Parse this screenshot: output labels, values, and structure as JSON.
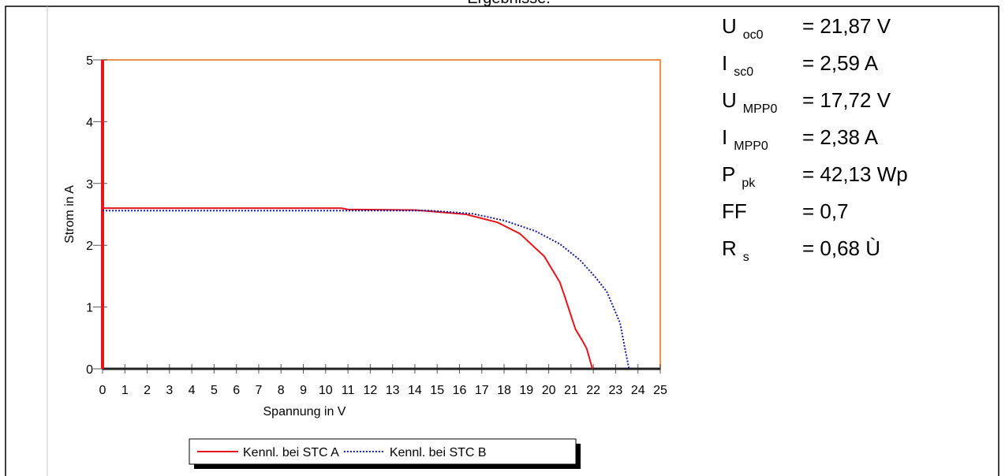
{
  "header": {
    "title": "Ergebnisse:"
  },
  "results": [
    {
      "symbol": "U",
      "sub": "oc0",
      "value": "= 21,87 V"
    },
    {
      "symbol": "I",
      "sub": "sc0",
      "value": "= 2,59 A"
    },
    {
      "symbol": "U",
      "sub": "MPP0",
      "value": "= 17,72 V"
    },
    {
      "symbol": "I",
      "sub": "MPP0",
      "value": "= 2,38 A"
    },
    {
      "symbol": "P",
      "sub": "pk",
      "value": "= 42,13 Wp"
    },
    {
      "symbol": "FF",
      "sub": "",
      "value": "= 0,7"
    },
    {
      "symbol": "R",
      "sub": "s",
      "value": "= 0,68 Ù"
    }
  ],
  "chart_data": {
    "type": "line",
    "x_label": "Spannung in V",
    "y_label": "Strom in A",
    "xlim": [
      0,
      25
    ],
    "xticks": [
      0,
      1,
      2,
      3,
      4,
      5,
      6,
      7,
      8,
      9,
      10,
      11,
      12,
      13,
      14,
      15,
      16,
      17,
      18,
      19,
      20,
      21,
      22,
      23,
      24,
      25
    ],
    "ylim": [
      0,
      5
    ],
    "yticks": [
      0,
      1,
      2,
      3,
      4,
      5
    ],
    "series": [
      {
        "name": "Kennl. bei STC A",
        "color": "#e8141c",
        "style": "solid",
        "x": [
          0,
          10.7,
          11,
          14,
          14.7,
          16.3,
          17.7,
          18.7,
          19.8,
          20.5,
          20.7,
          20.9,
          21.2,
          21.5,
          21.7,
          21.96
        ],
        "values": [
          2.6,
          2.6,
          2.58,
          2.57,
          2.55,
          2.5,
          2.37,
          2.19,
          1.82,
          1.4,
          1.19,
          0.97,
          0.64,
          0.46,
          0.33,
          0
        ]
      },
      {
        "name": "Kennl. bei STC B",
        "color": "#1a1a9c",
        "style": "dotted",
        "x": [
          0,
          14.7,
          16.6,
          18,
          19.4,
          20.5,
          21.4,
          22.1,
          22.6,
          23.2,
          23.4,
          23.6
        ],
        "values": [
          2.56,
          2.56,
          2.51,
          2.4,
          2.23,
          2.02,
          1.76,
          1.48,
          1.25,
          0.74,
          0.36,
          0
        ]
      }
    ]
  }
}
